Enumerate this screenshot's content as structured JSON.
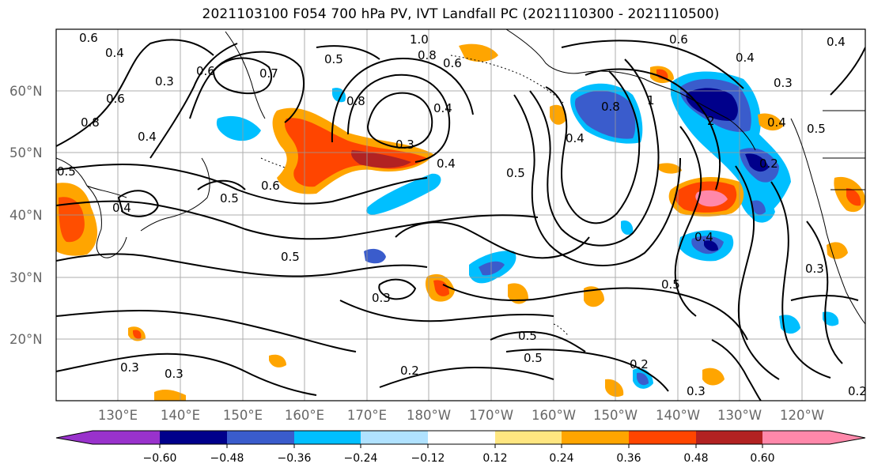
{
  "title": "2021103100 F054 700 hPa PV, IVT Landfall PC (2021110300 - 2021110500)",
  "lat_labels": [
    "60°N",
    "50°N",
    "40°N",
    "30°N",
    "20°N"
  ],
  "lon_labels": [
    "130°E",
    "140°E",
    "150°E",
    "160°E",
    "170°E",
    "180°W",
    "170°W",
    "160°W",
    "150°W",
    "140°W",
    "130°W",
    "120°W"
  ],
  "contour_labels": [
    "0.6",
    "0.4",
    "0.3",
    "0.6",
    "0.7",
    "0.5",
    "0.6",
    "0.8",
    "0.8",
    "0.5",
    "0.4",
    "0.5",
    "0.6",
    "1.0",
    "0.8",
    "0.6",
    "0.4",
    "0.3",
    "0.4",
    "0.5",
    "0.5",
    "0.4",
    "0.4",
    "0.8",
    "1",
    "0.6",
    "0.4",
    "0.3",
    "0.4",
    "0.5",
    "0.4",
    "0.5",
    "0.3",
    "0.5",
    "0.5",
    "0.3",
    "0.3",
    "0.2",
    "0.2",
    "0.3",
    "0.2",
    "0.3",
    "0.2",
    "0.4",
    "2",
    "0.3",
    "0.5",
    "0.3",
    "0.4",
    "0.4",
    "0.6"
  ],
  "colorbar": {
    "ticks": [
      "−0.60",
      "−0.48",
      "−0.36",
      "−0.24",
      "−0.12",
      "0.12",
      "0.24",
      "0.36",
      "0.48",
      "0.60"
    ],
    "colors": [
      "#9932cc",
      "#00008b",
      "#3a5ccc",
      "#00bfff",
      "#b0e2ff",
      "#ffffff",
      "#ffe680",
      "#ffa500",
      "#ff4500",
      "#b22222",
      "#ff88aa"
    ]
  }
}
